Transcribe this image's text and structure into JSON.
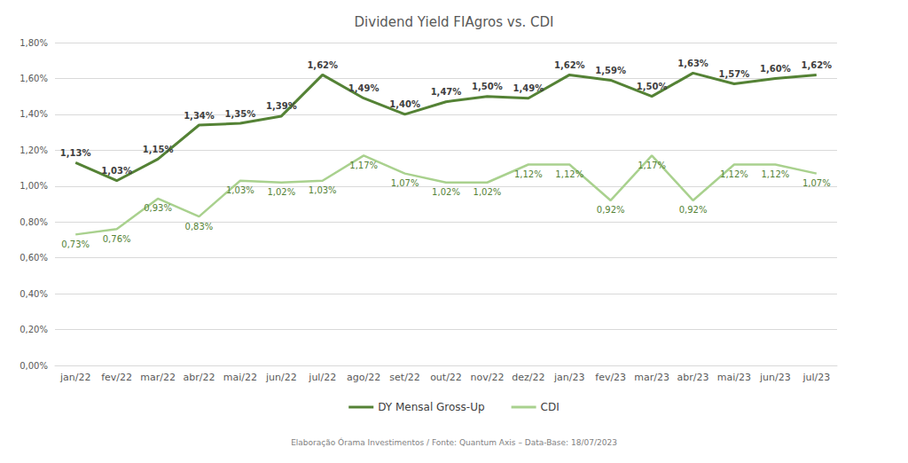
{
  "chart_data": {
    "type": "line",
    "title": "Dividend Yield FIAgros vs. CDI",
    "footer": "Elaboração Órama Investimentos / Fonte: Quantum Axis – Data-Base: 18/07/2023",
    "categories": [
      "jan/22",
      "fev/22",
      "mar/22",
      "abr/22",
      "mai/22",
      "jun/22",
      "jul/22",
      "ago/22",
      "set/22",
      "out/22",
      "nov/22",
      "dez/22",
      "jan/23",
      "fev/23",
      "mar/23",
      "abr/23",
      "mai/23",
      "jun/23",
      "jul/23"
    ],
    "series": [
      {
        "name": "DY Mensal Gross-Up",
        "color": "#548235",
        "values": [
          1.13,
          1.03,
          1.15,
          1.34,
          1.35,
          1.39,
          1.62,
          1.49,
          1.4,
          1.47,
          1.5,
          1.49,
          1.62,
          1.59,
          1.5,
          1.63,
          1.57,
          1.6,
          1.62
        ],
        "value_labels": [
          "1,13%",
          "1,03%",
          "1,15%",
          "1,34%",
          "1,35%",
          "1,39%",
          "1,62%",
          "1,49%",
          "1,40%",
          "1,47%",
          "1,50%",
          "1,49%",
          "1,62%",
          "1,59%",
          "1,50%",
          "1,63%",
          "1,57%",
          "1,60%",
          "1,62%"
        ]
      },
      {
        "name": "CDI",
        "color": "#a9d18e",
        "values": [
          0.73,
          0.76,
          0.93,
          0.83,
          1.03,
          1.02,
          1.03,
          1.17,
          1.07,
          1.02,
          1.02,
          1.12,
          1.12,
          0.92,
          1.17,
          0.92,
          1.12,
          1.12,
          1.07
        ],
        "value_labels": [
          "0,73%",
          "0,76%",
          "0,93%",
          "0,83%",
          "1,03%",
          "1,02%",
          "1,03%",
          "1,17%",
          "1,07%",
          "1,02%",
          "1,02%",
          "1,12%",
          "1,12%",
          "0,92%",
          "1,17%",
          "0,92%",
          "1,12%",
          "1,12%",
          "1,07%"
        ]
      }
    ],
    "ylim": [
      0,
      1.8
    ],
    "yticks": [
      {
        "value": 0,
        "label": "0,00%"
      },
      {
        "value": 0.2,
        "label": "0,20%"
      },
      {
        "value": 0.4,
        "label": "0,40%"
      },
      {
        "value": 0.6,
        "label": "0,60%"
      },
      {
        "value": 0.8,
        "label": "0,80%"
      },
      {
        "value": 1.0,
        "label": "1,00%"
      },
      {
        "value": 1.2,
        "label": "1,20%"
      },
      {
        "value": 1.4,
        "label": "1,40%"
      },
      {
        "value": 1.6,
        "label": "1,60%"
      },
      {
        "value": 1.8,
        "label": "1,80%"
      }
    ],
    "grid": true,
    "legend": "bottom",
    "data_labels": true
  }
}
